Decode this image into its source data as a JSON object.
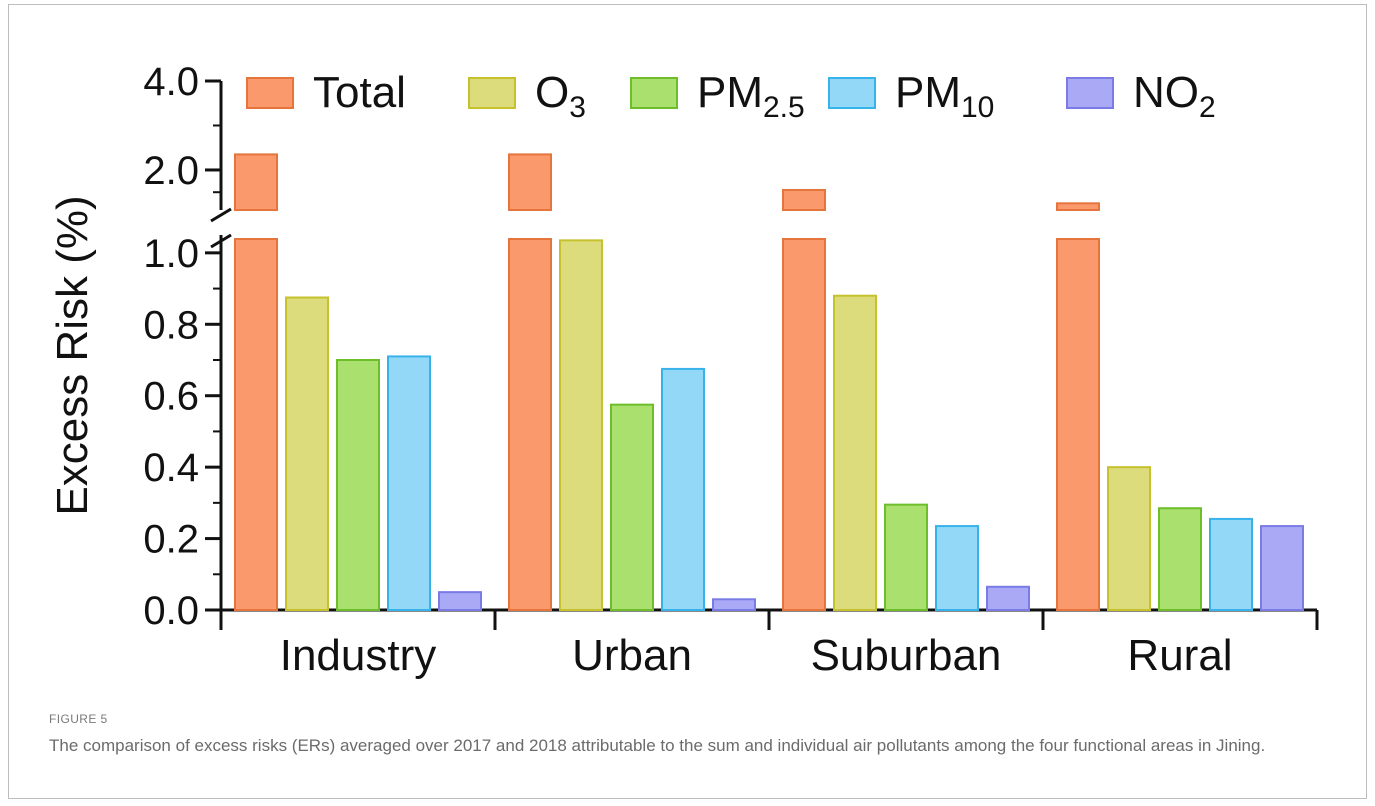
{
  "chart_data": {
    "type": "bar",
    "title": "",
    "xlabel": "",
    "ylabel": "Excess Risk (%)",
    "categories": [
      "Industry",
      "Urban",
      "Suburban",
      "Rural"
    ],
    "series": [
      {
        "name": "Total",
        "name_main": "Total",
        "name_sub": "",
        "color": "#FA9A6C",
        "stroke": "#E5753D",
        "values": [
          2.35,
          2.35,
          1.55,
          1.25
        ]
      },
      {
        "name": "O3",
        "name_main": "O",
        "name_sub": "3",
        "color": "#DCDC7C",
        "stroke": "#C6C22E",
        "values": [
          0.875,
          1.035,
          0.88,
          0.4
        ]
      },
      {
        "name": "PM2.5",
        "name_main": "PM",
        "name_sub": "2.5",
        "color": "#A9E06E",
        "stroke": "#6DBE2A",
        "values": [
          0.7,
          0.575,
          0.295,
          0.285
        ]
      },
      {
        "name": "PM10",
        "name_main": "PM",
        "name_sub": "10",
        "color": "#93D9F7",
        "stroke": "#37B3EA",
        "values": [
          0.71,
          0.675,
          0.235,
          0.255
        ]
      },
      {
        "name": "NO2",
        "name_main": "NO",
        "name_sub": "2",
        "color": "#A9A9F6",
        "stroke": "#7B7BE6",
        "values": [
          0.05,
          0.03,
          0.065,
          0.235
        ]
      }
    ],
    "y_segments": [
      {
        "range": [
          0,
          1.05
        ],
        "ticks": [
          0.0,
          0.2,
          0.4,
          0.6,
          0.8,
          1.0
        ],
        "tick_labels": [
          "0.0",
          "0.2",
          "0.4",
          "0.6",
          "0.8",
          "1.0"
        ]
      },
      {
        "range": [
          1.1,
          4.0
        ],
        "ticks": [
          2.0,
          4.0
        ],
        "tick_labels": [
          "2.0",
          "4.0"
        ]
      }
    ],
    "axis_break": [
      1.05,
      1.1
    ],
    "legend_position": "top",
    "grid": false
  },
  "caption": {
    "label": "FIGURE 5",
    "text": "The comparison of excess risks (ERs) averaged over 2017 and 2018 attributable to the sum and individual air pollutants among the four functional areas in Jining."
  }
}
